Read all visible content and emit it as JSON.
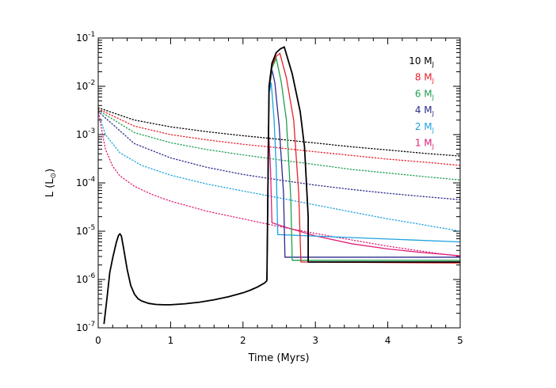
{
  "chart_data": {
    "type": "line",
    "xlabel": "Time (Myrs)",
    "ylabel": "L (L",
    "ylabel_symbol": "⊙",
    "ylabel_close": ")",
    "xlim": [
      0,
      5
    ],
    "ylim": [
      1e-07,
      0.1
    ],
    "yscale": "log",
    "x_ticks": [
      "0",
      "1",
      "2",
      "3",
      "4",
      "5"
    ],
    "y_tick_base": "10",
    "y_tick_exponents": [
      "-7",
      "-6",
      "-5",
      "-4",
      "-3",
      "-2",
      "-1"
    ],
    "legend_placement": "top-right",
    "legend_unit": "M",
    "legend_unit_sub": "J",
    "pre_accretion": {
      "color": "#000000",
      "points": [
        [
          0.08,
          1.2e-07
        ],
        [
          0.12,
          4e-07
        ],
        [
          0.16,
          1.4e-06
        ],
        [
          0.2,
          2.8e-06
        ],
        [
          0.25,
          5.8e-06
        ],
        [
          0.28,
          8.2e-06
        ],
        [
          0.3,
          8.8e-06
        ],
        [
          0.32,
          8e-06
        ],
        [
          0.35,
          4.5e-06
        ],
        [
          0.4,
          1.6e-06
        ],
        [
          0.45,
          7.5e-07
        ],
        [
          0.5,
          5e-07
        ],
        [
          0.55,
          4e-07
        ],
        [
          0.6,
          3.6e-07
        ],
        [
          0.7,
          3.2e-07
        ],
        [
          0.8,
          3.05e-07
        ],
        [
          0.9,
          3e-07
        ],
        [
          1.0,
          3e-07
        ],
        [
          1.2,
          3.15e-07
        ],
        [
          1.4,
          3.4e-07
        ],
        [
          1.6,
          3.8e-07
        ],
        [
          1.8,
          4.4e-07
        ],
        [
          2.0,
          5.3e-07
        ],
        [
          2.1,
          6e-07
        ],
        [
          2.2,
          7e-07
        ],
        [
          2.3,
          8.5e-07
        ],
        [
          2.33,
          9.5e-07
        ]
      ]
    },
    "series": [
      {
        "name": "10",
        "color": "#000000",
        "solid": [
          [
            2.33,
            9.5e-07
          ],
          [
            2.36,
            0.01
          ],
          [
            2.4,
            0.03
          ],
          [
            2.46,
            0.05
          ],
          [
            2.52,
            0.06
          ],
          [
            2.57,
            0.065
          ],
          [
            2.68,
            0.018
          ],
          [
            2.79,
            0.003
          ],
          [
            2.85,
            0.00055
          ],
          [
            2.9,
            2e-05
          ],
          [
            2.9,
            2.3e-06
          ],
          [
            5.0,
            2.3e-06
          ]
        ],
        "dotted": [
          [
            0.0,
            0.0036
          ],
          [
            0.5,
            0.002
          ],
          [
            1.0,
            0.00145
          ],
          [
            1.5,
            0.00115
          ],
          [
            2.0,
            0.00095
          ],
          [
            2.5,
            0.0008
          ],
          [
            3.0,
            0.00067
          ],
          [
            3.5,
            0.00056
          ],
          [
            4.0,
            0.00048
          ],
          [
            4.5,
            0.00041
          ],
          [
            5.0,
            0.00036
          ]
        ]
      },
      {
        "name": "8",
        "color": "#e8202a",
        "solid": [
          [
            2.33,
            9.5e-07
          ],
          [
            2.36,
            0.009
          ],
          [
            2.4,
            0.027
          ],
          [
            2.46,
            0.042
          ],
          [
            2.51,
            0.048
          ],
          [
            2.6,
            0.015
          ],
          [
            2.7,
            0.002
          ],
          [
            2.77,
            6e-05
          ],
          [
            2.8,
            2.3e-06
          ],
          [
            5.0,
            2.2e-06
          ]
        ],
        "dotted": [
          [
            0.0,
            0.0034
          ],
          [
            0.5,
            0.0015
          ],
          [
            1.0,
            0.001
          ],
          [
            1.5,
            0.00078
          ],
          [
            2.0,
            0.00063
          ],
          [
            2.5,
            0.00053
          ],
          [
            3.0,
            0.00044
          ],
          [
            3.5,
            0.00037
          ],
          [
            4.0,
            0.00031
          ],
          [
            4.5,
            0.00027
          ],
          [
            5.0,
            0.00023
          ]
        ]
      },
      {
        "name": "6",
        "color": "#1fa050",
        "solid": [
          [
            2.33,
            9.5e-07
          ],
          [
            2.36,
            0.009
          ],
          [
            2.4,
            0.024
          ],
          [
            2.46,
            0.038
          ],
          [
            2.53,
            0.012
          ],
          [
            2.6,
            0.002
          ],
          [
            2.66,
            5e-05
          ],
          [
            2.68,
            2.5e-06
          ],
          [
            5.0,
            2.5e-06
          ]
        ],
        "dotted": [
          [
            0.0,
            0.0032
          ],
          [
            0.5,
            0.0011
          ],
          [
            1.0,
            0.00068
          ],
          [
            1.5,
            0.00049
          ],
          [
            2.0,
            0.00038
          ],
          [
            2.5,
            0.0003
          ],
          [
            3.0,
            0.00024
          ],
          [
            3.5,
            0.00019
          ],
          [
            4.0,
            0.00016
          ],
          [
            4.5,
            0.000135
          ],
          [
            5.0,
            0.000115
          ]
        ]
      },
      {
        "name": "4",
        "color": "#2b2a8c",
        "solid": [
          [
            2.33,
            9.5e-07
          ],
          [
            2.36,
            0.008
          ],
          [
            2.4,
            0.022
          ],
          [
            2.44,
            0.012
          ],
          [
            2.5,
            0.0015
          ],
          [
            2.56,
            6e-05
          ],
          [
            2.58,
            2.9e-06
          ],
          [
            5.0,
            2.9e-06
          ]
        ],
        "dotted": [
          [
            0.0,
            0.003
          ],
          [
            0.5,
            0.00065
          ],
          [
            1.0,
            0.00033
          ],
          [
            1.5,
            0.00021
          ],
          [
            2.0,
            0.00015
          ],
          [
            2.5,
            0.000115
          ],
          [
            3.0,
            9e-05
          ],
          [
            3.5,
            7.3e-05
          ],
          [
            4.0,
            6.1e-05
          ],
          [
            4.5,
            5.2e-05
          ],
          [
            5.0,
            4.5e-05
          ]
        ]
      },
      {
        "name": "2",
        "color": "#1fa2e0",
        "solid": [
          [
            2.33,
            9.5e-07
          ],
          [
            2.36,
            0.007
          ],
          [
            2.39,
            0.012
          ],
          [
            2.43,
            0.002
          ],
          [
            2.46,
            0.0002
          ],
          [
            2.48,
            8.5e-06
          ],
          [
            5.0,
            6e-06
          ]
        ],
        "dotted": [
          [
            0.0,
            0.0028
          ],
          [
            0.1,
            0.001
          ],
          [
            0.3,
            0.00042
          ],
          [
            0.6,
            0.00023
          ],
          [
            1.0,
            0.000145
          ],
          [
            1.5,
            9.5e-05
          ],
          [
            2.0,
            6.8e-05
          ],
          [
            2.5,
            4.9e-05
          ],
          [
            3.0,
            3.5e-05
          ],
          [
            3.5,
            2.5e-05
          ],
          [
            4.0,
            1.8e-05
          ],
          [
            4.5,
            1.35e-05
          ],
          [
            5.0,
            1e-05
          ]
        ]
      },
      {
        "name": "1",
        "color": "#e0207a",
        "solid": [
          [
            2.33,
            9.5e-07
          ],
          [
            2.35,
            0.0015
          ],
          [
            2.38,
            0.0002
          ],
          [
            2.4,
            1.5e-05
          ],
          [
            2.6,
            1.2e-05
          ],
          [
            3.0,
            8e-06
          ],
          [
            3.5,
            5.5e-06
          ],
          [
            4.0,
            4.3e-06
          ],
          [
            4.5,
            3.6e-06
          ],
          [
            5.0,
            3.1e-06
          ]
        ],
        "dotted": [
          [
            0.0,
            0.0033
          ],
          [
            0.05,
            0.0012
          ],
          [
            0.1,
            0.0005
          ],
          [
            0.2,
            0.00022
          ],
          [
            0.3,
            0.00014
          ],
          [
            0.5,
            8.5e-05
          ],
          [
            0.75,
            5.7e-05
          ],
          [
            1.0,
            4.2e-05
          ],
          [
            1.5,
            2.6e-05
          ],
          [
            2.0,
            1.8e-05
          ],
          [
            2.5,
            1.25e-05
          ],
          [
            3.0,
            9e-06
          ],
          [
            3.5,
            6.6e-06
          ],
          [
            4.0,
            4.9e-06
          ],
          [
            4.5,
            3.8e-06
          ],
          [
            5.0,
            3e-06
          ]
        ]
      }
    ]
  }
}
